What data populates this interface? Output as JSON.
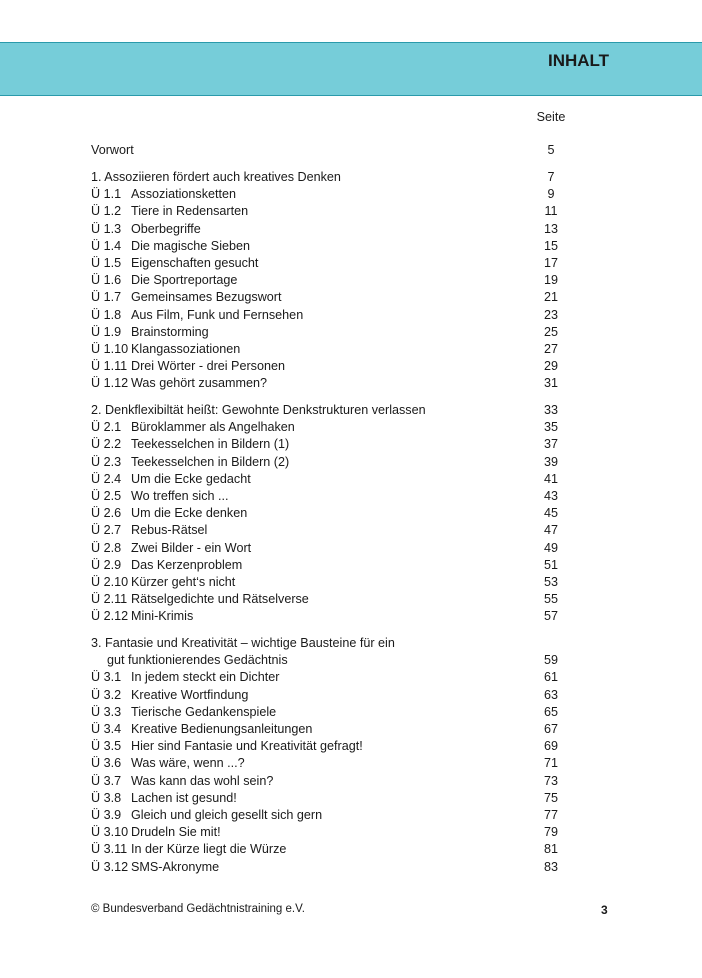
{
  "header": {
    "title": "INHALT"
  },
  "page_column_label": "Seite",
  "preface": {
    "title": "Vorwort",
    "page": "5"
  },
  "sections": [
    {
      "title": "1. Assoziieren fördert auch kreatives Denken",
      "title2": "",
      "page": "7",
      "items": [
        [
          "Ü 1.1",
          "Assoziationsketten",
          "9"
        ],
        [
          "Ü 1.2",
          "Tiere in Redensarten",
          "11"
        ],
        [
          "Ü 1.3",
          "Oberbegriffe",
          "13"
        ],
        [
          "Ü 1.4",
          "Die magische Sieben",
          "15"
        ],
        [
          "Ü 1.5",
          "Eigenschaften gesucht",
          "17"
        ],
        [
          "Ü 1.6",
          "Die Sportreportage",
          "19"
        ],
        [
          "Ü 1.7",
          "Gemeinsames Bezugswort",
          "21"
        ],
        [
          "Ü 1.8",
          "Aus Film, Funk und Fernsehen",
          "23"
        ],
        [
          "Ü 1.9",
          "Brainstorming",
          "25"
        ],
        [
          "Ü 1.10",
          "Klangassoziationen",
          "27"
        ],
        [
          "Ü 1.11",
          "Drei Wörter - drei Personen",
          "29"
        ],
        [
          "Ü 1.12",
          "Was gehört zusammen?",
          "31"
        ]
      ]
    },
    {
      "title": "2. Denkflexibiltät heißt: Gewohnte Denkstrukturen verlassen",
      "title2": "",
      "page": "33",
      "items": [
        [
          "Ü 2.1",
          "Büroklammer als Angelhaken",
          "35"
        ],
        [
          "Ü 2.2",
          "Teekesselchen in Bildern (1)",
          "37"
        ],
        [
          "Ü 2.3",
          "Teekesselchen in Bildern (2)",
          "39"
        ],
        [
          "Ü 2.4",
          "Um die Ecke gedacht",
          "41"
        ],
        [
          "Ü 2.5",
          "Wo treffen sich ...",
          "43"
        ],
        [
          "Ü 2.6",
          "Um die Ecke denken",
          "45"
        ],
        [
          "Ü 2.7",
          "Rebus-Rätsel",
          "47"
        ],
        [
          "Ü 2.8",
          "Zwei Bilder - ein Wort",
          "49"
        ],
        [
          "Ü 2.9",
          "Das Kerzenproblem",
          "51"
        ],
        [
          "Ü 2.10",
          "Kürzer geht‘s nicht",
          "53"
        ],
        [
          "Ü 2.11",
          "Rätselgedichte und Rätselverse",
          "55"
        ],
        [
          "Ü 2.12",
          "Mini-Krimis",
          "57"
        ]
      ]
    },
    {
      "title": "3. Fantasie und Kreativität – wichtige Bausteine für ein",
      "title2": "gut funktionierendes Gedächtnis",
      "page": "59",
      "items": [
        [
          "Ü 3.1",
          "In jedem steckt ein Dichter",
          "61"
        ],
        [
          "Ü 3.2",
          "Kreative Wortfindung",
          "63"
        ],
        [
          "Ü 3.3",
          "Tierische Gedankenspiele",
          "65"
        ],
        [
          "Ü 3.4",
          "Kreative Bedienungsanleitungen",
          "67"
        ],
        [
          "Ü 3.5",
          "Hier sind Fantasie und Kreativität gefragt!",
          "69"
        ],
        [
          "Ü 3.6",
          "Was wäre, wenn ...?",
          "71"
        ],
        [
          "Ü 3.7",
          "Was kann das wohl sein?",
          "73"
        ],
        [
          "Ü 3.8",
          "Lachen ist gesund!",
          "75"
        ],
        [
          "Ü 3.9",
          "Gleich und gleich gesellt sich gern",
          "77"
        ],
        [
          "Ü 3.10",
          "Drudeln Sie mit!",
          "79"
        ],
        [
          "Ü 3.11",
          "In der Kürze liegt die Würze",
          "81"
        ],
        [
          "Ü 3.12",
          "SMS-Akronyme",
          "83"
        ]
      ]
    }
  ],
  "footer": {
    "copyright": "© Bundesverband Gedächtnistraining e.V.",
    "page_number": "3"
  },
  "colors": {
    "band": "#76cdd9",
    "band_border": "#2a9aab"
  }
}
